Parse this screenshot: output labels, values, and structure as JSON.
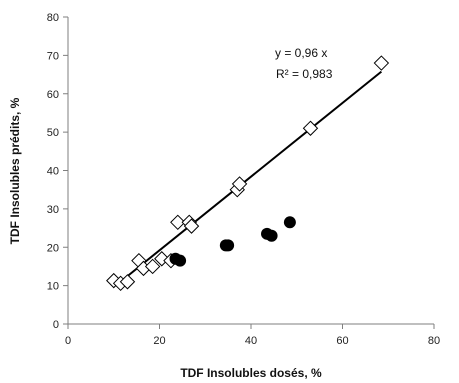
{
  "chart_data": {
    "type": "scatter",
    "title": "",
    "xlabel": "TDF Insolubles dosés, %",
    "ylabel": "TDF Insolubles prédits, %",
    "xlim": [
      0,
      80
    ],
    "ylim": [
      0,
      80
    ],
    "x_ticks": [
      "0",
      "20",
      "40",
      "60",
      "80"
    ],
    "y_ticks": [
      "0",
      "10",
      "20",
      "30",
      "40",
      "50",
      "60",
      "70",
      "80"
    ],
    "grid": false,
    "series": [
      {
        "marker": "diamond-open",
        "color": "#000000",
        "points": [
          {
            "x": 10.0,
            "y": 11.3
          },
          {
            "x": 11.5,
            "y": 10.6
          },
          {
            "x": 13.0,
            "y": 11.0
          },
          {
            "x": 15.5,
            "y": 16.5
          },
          {
            "x": 16.5,
            "y": 14.5
          },
          {
            "x": 18.5,
            "y": 15.0
          },
          {
            "x": 20.5,
            "y": 17.0
          },
          {
            "x": 22.5,
            "y": 16.5
          },
          {
            "x": 24.0,
            "y": 26.5
          },
          {
            "x": 26.5,
            "y": 26.5
          },
          {
            "x": 27.0,
            "y": 25.5
          },
          {
            "x": 37.0,
            "y": 35.0
          },
          {
            "x": 37.5,
            "y": 36.5
          },
          {
            "x": 53.0,
            "y": 51.0
          },
          {
            "x": 68.5,
            "y": 68.0
          }
        ]
      },
      {
        "marker": "circle-filled",
        "color": "#000000",
        "points": [
          {
            "x": 23.5,
            "y": 17.0
          },
          {
            "x": 24.5,
            "y": 16.5
          },
          {
            "x": 34.5,
            "y": 20.5
          },
          {
            "x": 35.0,
            "y": 20.5
          },
          {
            "x": 43.5,
            "y": 23.5
          },
          {
            "x": 44.5,
            "y": 23.0
          },
          {
            "x": 48.5,
            "y": 26.5
          }
        ]
      }
    ],
    "trendline": {
      "slope": 0.96,
      "x_range": [
        10.5,
        68.5
      ],
      "color": "#000000"
    },
    "annotations": [
      "y = 0,96 x",
      "R² = 0,983"
    ]
  }
}
